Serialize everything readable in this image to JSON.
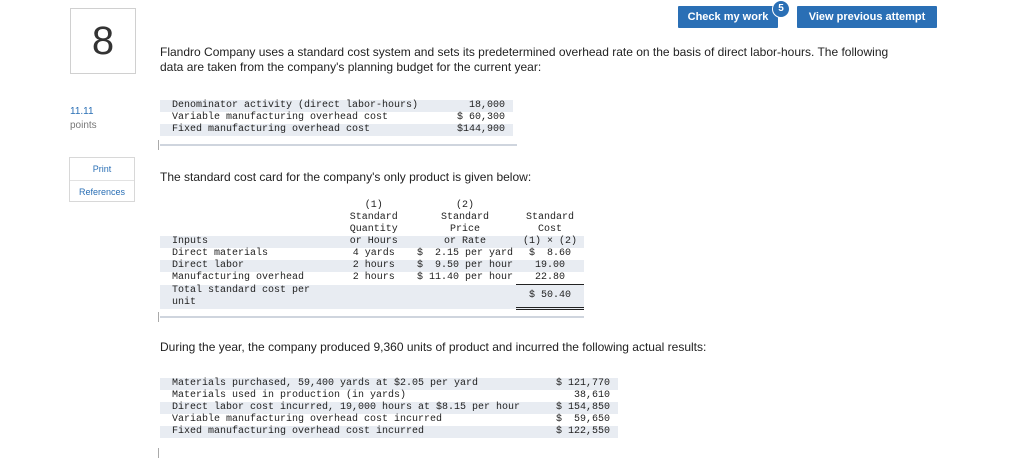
{
  "question": {
    "number": "8",
    "points_value": "11.11",
    "points_label": "points"
  },
  "side_links": {
    "print": "Print",
    "references": "References"
  },
  "toolbar": {
    "check_label": "Check my work",
    "check_badge": "5",
    "view_previous_label": "View previous attempt"
  },
  "intro": "Flandro Company uses a standard cost system and sets its predetermined overhead rate on the basis of direct labor-hours. The following data are taken from the company's planning budget for the current year:",
  "budget": [
    {
      "label": "Denominator activity (direct labor-hours)",
      "value": "18,000"
    },
    {
      "label": "Variable manufacturing overhead cost",
      "value": "$ 60,300"
    },
    {
      "label": "Fixed manufacturing overhead cost",
      "value": "$144,900"
    }
  ],
  "card_intro": "The standard cost card for the company's only product is given below:",
  "card": {
    "headers": {
      "inputs": "Inputs",
      "q1": "(1)",
      "q2": "Standard",
      "q3": "Quantity",
      "q4": "or Hours",
      "p1": "(2)",
      "p2": "Standard",
      "p3": "Price",
      "p4": "or Rate",
      "c2": "Standard",
      "c3": "Cost",
      "c4": "(1) × (2)"
    },
    "rows": [
      {
        "input": "Direct materials",
        "qty": "4 yards",
        "price": "$  2.15 per yard",
        "cost": "$  8.60"
      },
      {
        "input": "Direct labor",
        "qty": "2 hours",
        "price": "$  9.50 per hour",
        "cost": "19.00"
      },
      {
        "input": "Manufacturing overhead",
        "qty": "2 hours",
        "price": "$ 11.40 per hour",
        "cost": "22.80"
      }
    ],
    "total_label_1": "Total standard cost per",
    "total_label_2": "unit",
    "total_value": "$ 50.40"
  },
  "actual_intro": "During the year, the company produced 9,360 units of product and incurred the following actual results:",
  "actuals": [
    {
      "label": "Materials purchased, 59,400 yards at $2.05 per yard",
      "value": "$ 121,770"
    },
    {
      "label": "Materials used in production (in yards)",
      "value": "38,610"
    },
    {
      "label": "Direct labor cost incurred, 19,000 hours at $8.15 per hour",
      "value": "$ 154,850"
    },
    {
      "label": "Variable manufacturing overhead cost incurred",
      "value": "$  59,650"
    },
    {
      "label": "Fixed manufacturing overhead cost incurred",
      "value": "$ 122,550"
    }
  ]
}
